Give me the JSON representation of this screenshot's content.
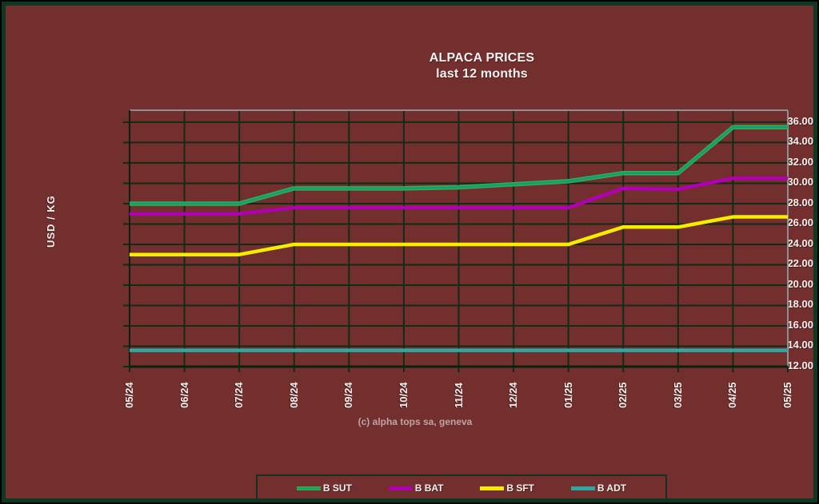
{
  "title": {
    "line1": "ALPACA PRICES",
    "line2": "last 12 months"
  },
  "footer_credit": "(c) alpha tops sa, geneva",
  "colors": {
    "background": "#732e2e",
    "window_border": "#0d3822",
    "grid": "#102b16",
    "axis": "#0a2010",
    "frame_highlight": "#8f8f8f",
    "text": "#f7f2ef",
    "footer_text": "#c0a4a4",
    "legend_border": "#15301c"
  },
  "chart_data": {
    "type": "line",
    "title": "ALPACA PRICES",
    "subtitle": "last 12 months",
    "xlabel": "",
    "ylabel": "USD / KG",
    "ylim": [
      12,
      37.17
    ],
    "ytick_min": 12,
    "ytick_max": 36,
    "ytick_step": 2,
    "ytick_format_decimals": 2,
    "grid": true,
    "legend_position": "bottom",
    "categories": [
      "05/24",
      "06/24",
      "07/24",
      "08/24",
      "09/24",
      "10/24",
      "11/24",
      "12/24",
      "01/25",
      "02/25",
      "03/25",
      "04/25",
      "05/25"
    ],
    "series": [
      {
        "name": "B SUT",
        "color": "#169a78",
        "edge_color": "#2eb24b",
        "values": [
          28.0,
          28.0,
          28.0,
          29.5,
          29.5,
          29.5,
          29.6,
          29.9,
          30.2,
          31.0,
          31.0,
          35.5,
          35.5
        ]
      },
      {
        "name": "B BAT",
        "color": "#b100b1",
        "values": [
          27.0,
          27.0,
          27.0,
          27.6,
          27.6,
          27.6,
          27.6,
          27.6,
          27.6,
          29.5,
          29.4,
          30.5,
          30.5
        ]
      },
      {
        "name": "B SFT",
        "color": "#f6ec00",
        "values": [
          23.0,
          23.0,
          23.0,
          24.0,
          24.0,
          24.0,
          24.0,
          24.0,
          24.0,
          25.7,
          25.7,
          26.7,
          26.7
        ]
      },
      {
        "name": "B ADT",
        "color": "#2fa8a4",
        "values": [
          13.6,
          13.6,
          13.6,
          13.6,
          13.6,
          13.6,
          13.6,
          13.6,
          13.6,
          13.6,
          13.6,
          13.6,
          13.6
        ]
      }
    ]
  }
}
